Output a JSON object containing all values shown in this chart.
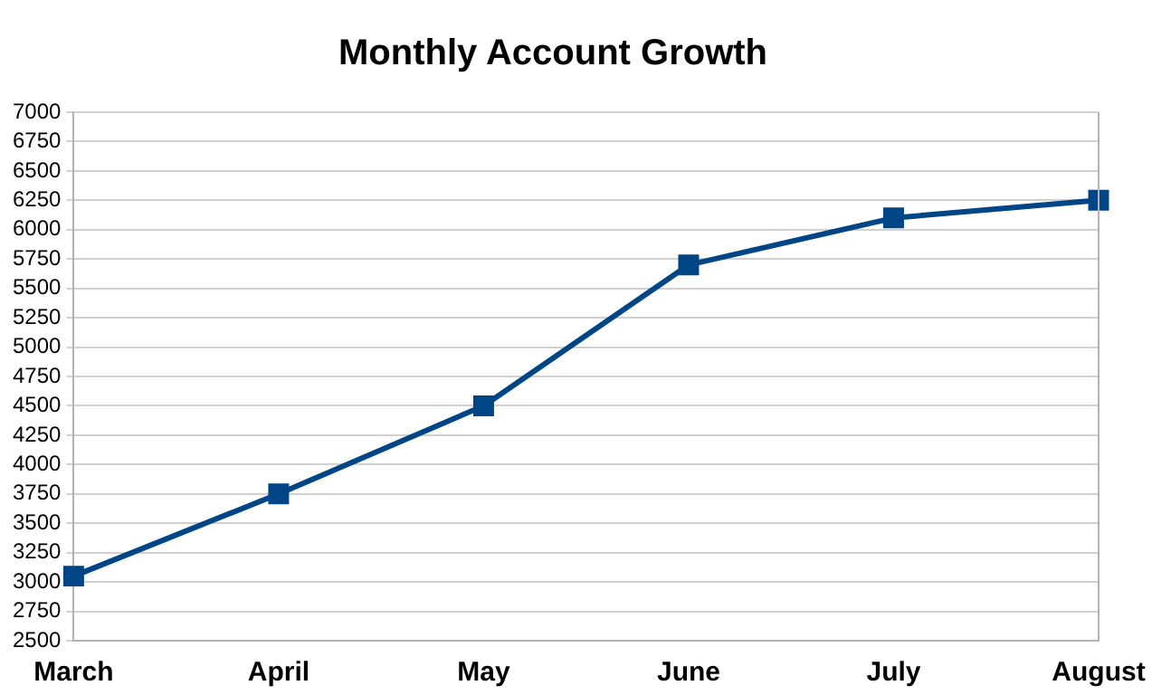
{
  "chart_data": {
    "type": "line",
    "title": "Monthly Account Growth",
    "categories": [
      "March",
      "April",
      "May",
      "June",
      "July",
      "August"
    ],
    "series": [
      {
        "color": "#004586",
        "values": [
          3050,
          3750,
          4500,
          5700,
          6100,
          6250
        ]
      }
    ],
    "ylim": [
      2500,
      7000
    ],
    "yticks": [
      2500,
      2750,
      3000,
      3250,
      3500,
      3750,
      4000,
      4250,
      4500,
      4750,
      5000,
      5250,
      5500,
      5750,
      6000,
      6250,
      6500,
      6750,
      7000
    ],
    "grid": "y",
    "legend": false,
    "marker": "square",
    "line_style": "solid"
  }
}
